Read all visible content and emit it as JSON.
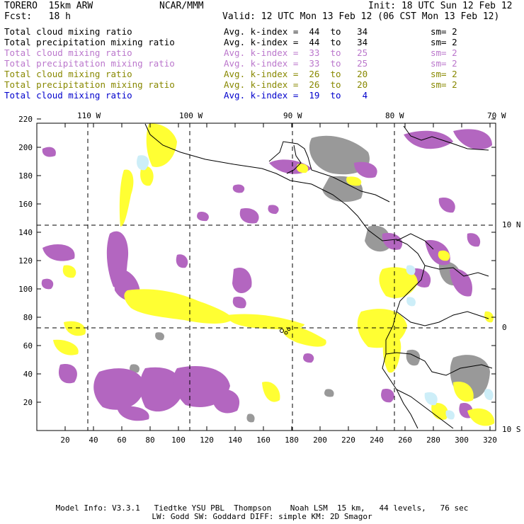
{
  "header": {
    "model": "TORERO  15km ARW",
    "center": "NCAR/MMM",
    "init": "Init: 18 UTC Sun 12 Feb 12",
    "fcst": "Fcst:   18 h",
    "valid": "Valid: 12 UTC Mon 13 Feb 12 (06 CST Mon 13 Feb 12)"
  },
  "legend": [
    {
      "field": "Total cloud mixing ratio",
      "kindex": "Avg. k-index =  44  to   34",
      "sm": "sm= 2",
      "color": "#000000"
    },
    {
      "field": "Total precipitation mixing ratio",
      "kindex": "Avg. k-index =  44  to   34",
      "sm": "sm= 2",
      "color": "#000000"
    },
    {
      "field": "Total cloud mixing ratio",
      "kindex": "Avg. k-index =  33  to   25",
      "sm": "sm= 2",
      "color": "#bb77cc"
    },
    {
      "field": "Total precipitation mixing ratio",
      "kindex": "Avg. k-index =  33  to   25",
      "sm": "sm= 2",
      "color": "#bb77cc"
    },
    {
      "field": "Total cloud mixing ratio",
      "kindex": "Avg. k-index =  26  to   20",
      "sm": "sm= 2",
      "color": "#888800"
    },
    {
      "field": "Total precipitation mixing ratio",
      "kindex": "Avg. k-index =  26  to   20",
      "sm": "sm= 2",
      "color": "#888800"
    },
    {
      "field": "Total cloud mixing ratio",
      "kindex": "Avg. k-index =  19  to    4",
      "sm": "",
      "color": "#0000cc"
    }
  ],
  "map": {
    "lon_labels": [
      "110 W",
      "100 W",
      "90 W",
      "80 W",
      "70 W"
    ],
    "lat_labels": [
      "10 N",
      "0",
      "10 S"
    ],
    "x_ticks": [
      "20",
      "40",
      "60",
      "80",
      "100",
      "120",
      "140",
      "160",
      "180",
      "200",
      "220",
      "240",
      "260",
      "280",
      "300",
      "320"
    ],
    "y_ticks": [
      "20",
      "40",
      "60",
      "80",
      "100",
      "120",
      "140",
      "160",
      "180",
      "200",
      "220"
    ],
    "colors": {
      "purple": "#b366c0",
      "yellow": "#ffff33",
      "gray": "#999999",
      "cyan": "#cdeef8",
      "grid": "#000000"
    }
  },
  "footer": {
    "line1": "Model Info: V3.3.1   Tiedtke YSU PBL  Thompson    Noah LSM  15 km,   44 levels,   76 sec",
    "line2": "LW: Godd SW: Goddard DIFF: simple KM: 2D Smagor"
  }
}
